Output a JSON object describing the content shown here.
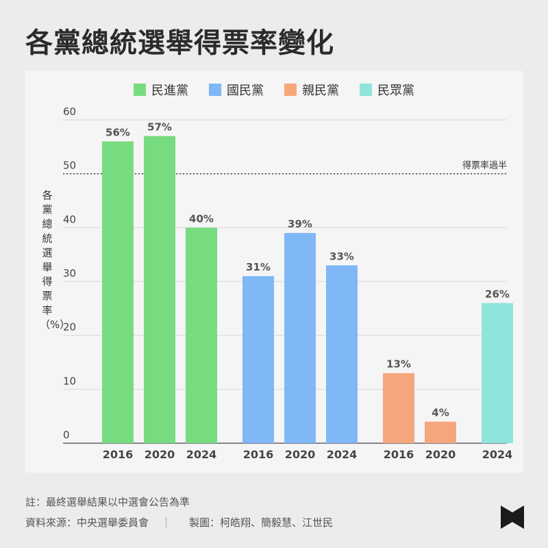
{
  "title": "各黨總統選舉得票率變化",
  "legend": [
    {
      "name": "民進黨",
      "color": "#77db7f"
    },
    {
      "name": "國民黨",
      "color": "#7fb7f7"
    },
    {
      "name": "親民黨",
      "color": "#f6a67d"
    },
    {
      "name": "民眾黨",
      "color": "#8ee5db"
    }
  ],
  "chart_data": {
    "type": "bar",
    "ylabel": "各黨總統選舉得票率（%）",
    "ylim": [
      0,
      60
    ],
    "yticks": [
      0,
      10,
      20,
      30,
      40,
      50,
      60
    ],
    "grid": true,
    "legend_position": "top-center",
    "reference_line": {
      "value": 50,
      "label": "得票率過半",
      "style": "dotted"
    },
    "series": [
      {
        "name": "民進黨",
        "color": "#77db7f",
        "categories": [
          "2016",
          "2020",
          "2024"
        ],
        "values": [
          56,
          57,
          40
        ],
        "labels": [
          "56%",
          "57%",
          "40%"
        ]
      },
      {
        "name": "國民黨",
        "color": "#7fb7f7",
        "categories": [
          "2016",
          "2020",
          "2024"
        ],
        "values": [
          31,
          39,
          33
        ],
        "labels": [
          "31%",
          "39%",
          "33%"
        ]
      },
      {
        "name": "親民黨",
        "color": "#f6a67d",
        "categories": [
          "2016",
          "2020"
        ],
        "values": [
          13,
          4
        ],
        "labels": [
          "13%",
          "4%"
        ]
      },
      {
        "name": "民眾黨",
        "color": "#8ee5db",
        "categories": [
          "2024"
        ],
        "values": [
          26
        ],
        "labels": [
          "26%"
        ]
      }
    ]
  },
  "footer": {
    "note": "註：最終選舉結果以中選會公告為準",
    "source": "資料來源：中央選舉委員會",
    "separator": "｜",
    "credit": "製圖：柯皓翔、簡毅慧、江世民"
  }
}
